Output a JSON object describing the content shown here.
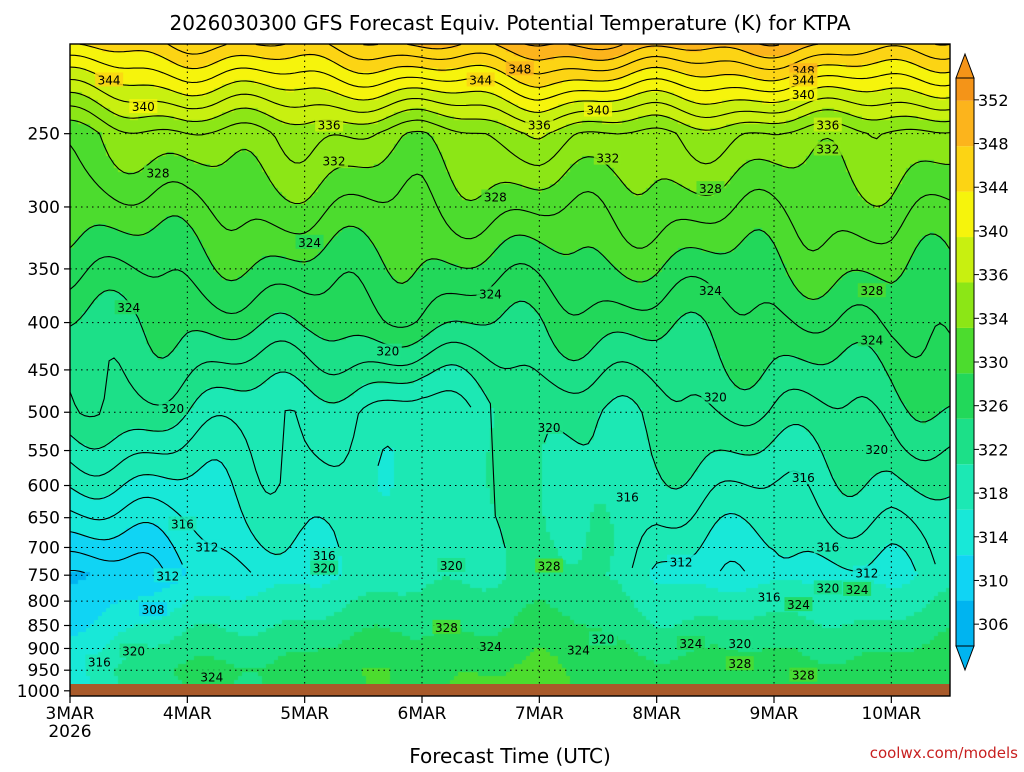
{
  "chart_data": {
    "type": "heatmap",
    "title": "2026030300 GFS Forecast Equiv. Potential Temperature (K) for KTPA",
    "xlabel": "Forecast Time (UTC)",
    "ylabel": "",
    "x_range_hours": [
      0,
      180
    ],
    "x_ticks": [
      {
        "hour": 0,
        "label": "3MAR",
        "sub": "2026"
      },
      {
        "hour": 24,
        "label": "4MAR"
      },
      {
        "hour": 48,
        "label": "5MAR"
      },
      {
        "hour": 72,
        "label": "6MAR"
      },
      {
        "hour": 96,
        "label": "7MAR"
      },
      {
        "hour": 120,
        "label": "8MAR"
      },
      {
        "hour": 144,
        "label": "9MAR"
      },
      {
        "hour": 168,
        "label": "10MAR"
      }
    ],
    "y_range_hpa": [
      1013,
      200
    ],
    "y_ticks": [
      250,
      300,
      350,
      400,
      450,
      500,
      550,
      600,
      650,
      700,
      750,
      800,
      850,
      900,
      950,
      1000
    ],
    "grid": true,
    "colorbar": {
      "min": 304,
      "max": 354,
      "labels": [
        306,
        310,
        314,
        318,
        322,
        326,
        330,
        334,
        336,
        340,
        344,
        348,
        352
      ],
      "bands": [
        {
          "lo": 304,
          "hi": 308,
          "color": "#00b4f0"
        },
        {
          "lo": 308,
          "hi": 312,
          "color": "#10d4f4"
        },
        {
          "lo": 312,
          "hi": 316,
          "color": "#18e8d8"
        },
        {
          "lo": 316,
          "hi": 320,
          "color": "#1ce8b4"
        },
        {
          "lo": 320,
          "hi": 324,
          "color": "#1ce088"
        },
        {
          "lo": 324,
          "hi": 328,
          "color": "#22d85a"
        },
        {
          "lo": 328,
          "hi": 332,
          "color": "#4cdc2e"
        },
        {
          "lo": 332,
          "hi": 336,
          "color": "#8ce616"
        },
        {
          "lo": 336,
          "hi": 340,
          "color": "#c8f010"
        },
        {
          "lo": 340,
          "hi": 344,
          "color": "#f6f40c"
        },
        {
          "lo": 344,
          "hi": 348,
          "color": "#fcd414"
        },
        {
          "lo": 348,
          "hi": 352,
          "color": "#fcb41c"
        },
        {
          "lo": 352,
          "hi": 356,
          "color": "#f49418"
        }
      ]
    },
    "contour_interval_k": 2,
    "contour_label_interval_k": 4,
    "series": [
      {
        "name": "theta_e_250hPa_K",
        "hours": [
          0,
          24,
          48,
          72,
          96,
          120,
          144,
          168,
          180
        ],
        "values": [
          331,
          334,
          334,
          333,
          335,
          334,
          334,
          333,
          333
        ]
      },
      {
        "name": "theta_e_400hPa_K",
        "hours": [
          0,
          24,
          48,
          72,
          96,
          120,
          144,
          168,
          180
        ],
        "values": [
          324,
          324,
          325,
          325,
          324,
          325,
          325,
          327,
          326
        ]
      },
      {
        "name": "theta_e_500hPa_K",
        "hours": [
          0,
          24,
          48,
          72,
          96,
          120,
          144,
          168,
          180
        ],
        "values": [
          322,
          320,
          318,
          317,
          320,
          321,
          322,
          322,
          324
        ]
      },
      {
        "name": "theta_e_750hPa_K",
        "hours": [
          0,
          24,
          48,
          72,
          96,
          120,
          144,
          168,
          180
        ],
        "values": [
          308,
          311,
          316,
          318,
          322,
          316,
          314,
          316,
          318
        ]
      },
      {
        "name": "theta_e_950hPa_K",
        "hours": [
          0,
          24,
          48,
          72,
          96,
          120,
          144,
          168,
          180
        ],
        "values": [
          316,
          325,
          326,
          328,
          328,
          326,
          326,
          326,
          326
        ]
      }
    ],
    "contour_labels": [
      {
        "hour": 8,
        "hpa": 219,
        "value": "344"
      },
      {
        "hour": 15,
        "hpa": 234,
        "value": "340"
      },
      {
        "hour": 18,
        "hpa": 276,
        "value": "328"
      },
      {
        "hour": 12,
        "hpa": 386,
        "value": "324"
      },
      {
        "hour": 21,
        "hpa": 496,
        "value": "320"
      },
      {
        "hour": 23,
        "hpa": 661,
        "value": "316"
      },
      {
        "hour": 28,
        "hpa": 700,
        "value": "312"
      },
      {
        "hour": 20,
        "hpa": 752,
        "value": "312"
      },
      {
        "hour": 17,
        "hpa": 818,
        "value": "308"
      },
      {
        "hour": 13,
        "hpa": 907,
        "value": "320"
      },
      {
        "hour": 6,
        "hpa": 932,
        "value": "316"
      },
      {
        "hour": 29,
        "hpa": 968,
        "value": "324"
      },
      {
        "hour": 53,
        "hpa": 245,
        "value": "336"
      },
      {
        "hour": 54,
        "hpa": 268,
        "value": "332"
      },
      {
        "hour": 49,
        "hpa": 328,
        "value": "324"
      },
      {
        "hour": 65,
        "hpa": 430,
        "value": "320"
      },
      {
        "hour": 52,
        "hpa": 715,
        "value": "316"
      },
      {
        "hour": 52,
        "hpa": 738,
        "value": "320"
      },
      {
        "hour": 78,
        "hpa": 733,
        "value": "320"
      },
      {
        "hour": 77,
        "hpa": 855,
        "value": "328"
      },
      {
        "hour": 86,
        "hpa": 897,
        "value": "324"
      },
      {
        "hour": 84,
        "hpa": 219,
        "value": "344"
      },
      {
        "hour": 92,
        "hpa": 213,
        "value": "348"
      },
      {
        "hour": 87,
        "hpa": 293,
        "value": "328"
      },
      {
        "hour": 86,
        "hpa": 373,
        "value": "324"
      },
      {
        "hour": 96,
        "hpa": 245,
        "value": "336"
      },
      {
        "hour": 98,
        "hpa": 520,
        "value": "320"
      },
      {
        "hour": 98,
        "hpa": 734,
        "value": "328"
      },
      {
        "hour": 108,
        "hpa": 236,
        "value": "340"
      },
      {
        "hour": 110,
        "hpa": 266,
        "value": "332"
      },
      {
        "hour": 104,
        "hpa": 905,
        "value": "324"
      },
      {
        "hour": 109,
        "hpa": 880,
        "value": "320"
      },
      {
        "hour": 114,
        "hpa": 618,
        "value": "316"
      },
      {
        "hour": 131,
        "hpa": 287,
        "value": "328"
      },
      {
        "hour": 131,
        "hpa": 370,
        "value": "324"
      },
      {
        "hour": 132,
        "hpa": 482,
        "value": "320"
      },
      {
        "hour": 125,
        "hpa": 727,
        "value": "312"
      },
      {
        "hour": 127,
        "hpa": 890,
        "value": "324"
      },
      {
        "hour": 137,
        "hpa": 890,
        "value": "320"
      },
      {
        "hour": 137,
        "hpa": 936,
        "value": "328"
      },
      {
        "hour": 150,
        "hpa": 589,
        "value": "316"
      },
      {
        "hour": 155,
        "hpa": 700,
        "value": "316"
      },
      {
        "hour": 143,
        "hpa": 793,
        "value": "316"
      },
      {
        "hour": 149,
        "hpa": 808,
        "value": "324"
      },
      {
        "hour": 150,
        "hpa": 963,
        "value": "328"
      },
      {
        "hour": 155,
        "hpa": 775,
        "value": "320"
      },
      {
        "hour": 161,
        "hpa": 778,
        "value": "324"
      },
      {
        "hour": 163,
        "hpa": 747,
        "value": "312"
      },
      {
        "hour": 165,
        "hpa": 549,
        "value": "320"
      },
      {
        "hour": 164,
        "hpa": 370,
        "value": "328"
      },
      {
        "hour": 164,
        "hpa": 418,
        "value": "324"
      },
      {
        "hour": 155,
        "hpa": 245,
        "value": "336"
      },
      {
        "hour": 155,
        "hpa": 260,
        "value": "332"
      },
      {
        "hour": 150,
        "hpa": 214,
        "value": "348"
      },
      {
        "hour": 150,
        "hpa": 219,
        "value": "344"
      },
      {
        "hour": 150,
        "hpa": 227,
        "value": "340"
      }
    ]
  },
  "credit": "coolwx.com/models",
  "colors": {
    "ground": "#a85a2a",
    "credit": "#c82020",
    "contour": "#000000",
    "grid": "#000000"
  }
}
